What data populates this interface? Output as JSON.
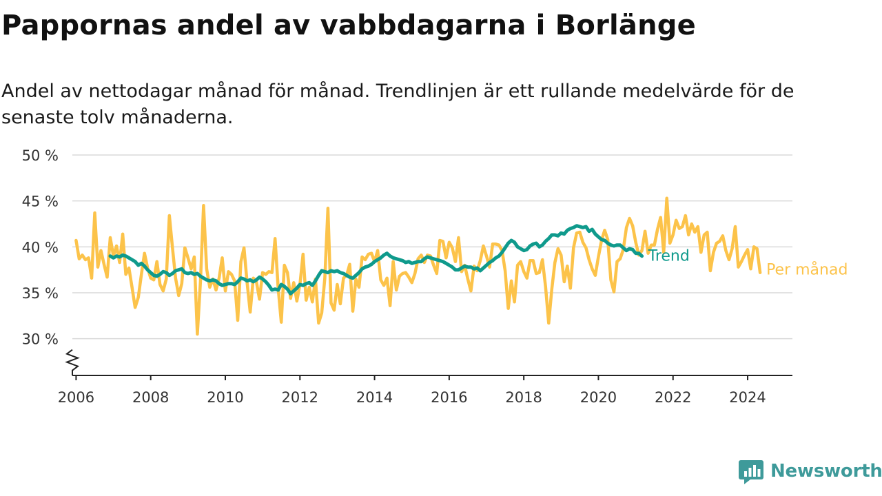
{
  "title": "Pappornas andel av vabbdagarna i Borlänge",
  "subtitle": "Andel av nettodagar månad för månad. Trendlinjen är ett rullande medelvärde för de senaste tolv månaderna.",
  "logo": {
    "text": "Newsworthy",
    "icon": "newsworthy-logo-icon"
  },
  "colors": {
    "monthly": "#fcc34a",
    "trend": "#0f9a8c",
    "grid": "#d9d9d9",
    "axis": "#222222",
    "text": "#333333",
    "logo": "#3e9a9a"
  },
  "chart_data": {
    "type": "line",
    "title": "Pappornas andel av vabbdagarna i Borlänge",
    "subtitle": "Andel av nettodagar månad för månad. Trendlinjen är ett rullande medelvärde för de senaste tolv månaderna.",
    "xlabel": "",
    "ylabel": "",
    "ylim": [
      26,
      50
    ],
    "y_axis_break": true,
    "y_ticks": [
      30,
      35,
      40,
      45,
      50
    ],
    "y_tick_labels": [
      "30 %",
      "35 %",
      "40 %",
      "45 %",
      "50 %"
    ],
    "x_ticks": [
      2006,
      2008,
      2010,
      2012,
      2014,
      2016,
      2018,
      2020,
      2022,
      2024
    ],
    "x_tick_labels": [
      "2006",
      "2008",
      "2010",
      "2012",
      "2014",
      "2016",
      "2018",
      "2020",
      "2022",
      "2024"
    ],
    "xlim": [
      2005.9,
      2025.2
    ],
    "grid": true,
    "legend": "direct labels at right end of lines",
    "x_start": "2006-01",
    "x_step": "month",
    "series": [
      {
        "name": "Trend",
        "start": "2006-12",
        "values": [
          39.0,
          38.8,
          39.0,
          38.9,
          39.1,
          39.0,
          38.8,
          38.6,
          38.4,
          38.0,
          38.2,
          37.9,
          37.5,
          37.2,
          36.9,
          36.8,
          37.0,
          37.3,
          37.2,
          36.9,
          37.1,
          37.4,
          37.5,
          37.6,
          37.2,
          37.1,
          37.2,
          37.0,
          37.1,
          36.8,
          36.6,
          36.4,
          36.3,
          36.4,
          36.3,
          36.0,
          35.8,
          35.9,
          36.0,
          36.0,
          35.9,
          36.2,
          36.6,
          36.5,
          36.3,
          36.4,
          36.2,
          36.4,
          36.7,
          36.5,
          36.2,
          35.8,
          35.3,
          35.4,
          35.3,
          35.9,
          35.7,
          35.4,
          34.9,
          35.2,
          35.5,
          35.9,
          35.8,
          36.0,
          36.1,
          35.8,
          36.3,
          36.9,
          37.4,
          37.3,
          37.2,
          37.4,
          37.3,
          37.4,
          37.2,
          37.1,
          36.9,
          36.7,
          36.6,
          36.9,
          37.2,
          37.6,
          37.8,
          37.9,
          38.1,
          38.4,
          38.6,
          38.8,
          39.1,
          39.3,
          39.0,
          38.8,
          38.7,
          38.6,
          38.5,
          38.3,
          38.4,
          38.2,
          38.3,
          38.4,
          38.4,
          38.7,
          38.9,
          38.8,
          38.7,
          38.6,
          38.5,
          38.4,
          38.2,
          38.0,
          37.8,
          37.5,
          37.5,
          37.7,
          37.9,
          37.8,
          37.8,
          37.6,
          37.7,
          37.4,
          37.7,
          38.0,
          38.3,
          38.5,
          38.8,
          39.0,
          39.4,
          39.9,
          40.4,
          40.7,
          40.5,
          40.0,
          39.8,
          39.6,
          39.7,
          40.1,
          40.3,
          40.4,
          40.0,
          40.2,
          40.6,
          40.9,
          41.3,
          41.3,
          41.2,
          41.5,
          41.4,
          41.8,
          42.0,
          42.1,
          42.3,
          42.2,
          42.1,
          42.2,
          41.7,
          41.9,
          41.4,
          41.1,
          40.8,
          40.7,
          40.4,
          40.2,
          40.1,
          40.2,
          40.2,
          39.9,
          39.6,
          39.8,
          39.7,
          39.3,
          39.3,
          39.0
        ]
      },
      {
        "name": "Per månad",
        "start": "2006-01",
        "values": [
          40.7,
          38.7,
          39.1,
          38.6,
          38.8,
          36.6,
          43.7,
          37.8,
          39.6,
          38.1,
          36.7,
          41.0,
          39.0,
          40.1,
          38.3,
          41.4,
          37.0,
          37.7,
          35.6,
          33.4,
          34.5,
          37.0,
          39.3,
          37.7,
          36.6,
          36.4,
          38.4,
          35.9,
          35.2,
          36.5,
          43.4,
          39.9,
          36.6,
          34.7,
          36.0,
          39.9,
          38.8,
          37.6,
          38.9,
          30.5,
          36.2,
          44.5,
          37.6,
          35.6,
          36.5,
          35.3,
          36.6,
          38.8,
          35.2,
          37.3,
          37.0,
          36.3,
          32.0,
          38.4,
          39.9,
          36.1,
          32.9,
          36.6,
          36.2,
          34.3,
          37.2,
          37.0,
          37.3,
          37.2,
          40.9,
          35.5,
          31.8,
          38.0,
          37.2,
          34.4,
          36.1,
          34.1,
          35.9,
          39.2,
          34.2,
          35.6,
          34.0,
          36.5,
          31.7,
          32.8,
          36.6,
          44.2,
          33.9,
          33.1,
          35.9,
          33.8,
          36.6,
          36.9,
          38.1,
          33.0,
          36.5,
          35.6,
          38.9,
          38.6,
          39.2,
          39.3,
          38.4,
          39.6,
          36.4,
          35.8,
          36.6,
          33.6,
          38.4,
          35.3,
          36.8,
          37.1,
          37.2,
          36.7,
          36.1,
          37.1,
          38.7,
          39.1,
          38.3,
          39.1,
          39.0,
          38.0,
          37.1,
          40.7,
          40.6,
          38.8,
          40.5,
          39.9,
          38.4,
          41.0,
          37.3,
          38.0,
          36.5,
          35.2,
          37.9,
          37.4,
          38.5,
          40.1,
          39.0,
          37.8,
          40.3,
          40.3,
          40.2,
          39.6,
          37.4,
          33.3,
          36.3,
          34.0,
          38.0,
          38.4,
          37.3,
          36.6,
          38.5,
          38.5,
          37.1,
          37.2,
          38.6,
          35.7,
          31.7,
          35.4,
          38.3,
          39.8,
          39.1,
          36.2,
          37.9,
          35.5,
          39.9,
          41.5,
          41.6,
          40.5,
          39.9,
          38.6,
          37.6,
          36.9,
          38.9,
          40.7,
          41.8,
          40.8,
          36.4,
          35.1,
          38.4,
          38.7,
          39.7,
          42.1,
          43.1,
          42.3,
          40.5,
          39.1,
          39.6,
          41.7,
          39.3,
          40.2,
          40.2,
          41.9,
          43.2,
          39.4,
          45.3,
          40.4,
          41.3,
          42.9,
          42.0,
          42.2,
          43.4,
          41.3,
          42.5,
          41.6,
          42.2,
          39.4,
          41.3,
          41.6,
          37.4,
          39.4,
          40.4,
          40.6,
          41.2,
          39.6,
          38.6,
          39.8,
          42.2,
          37.8,
          38.4,
          39.1,
          39.7,
          37.6,
          40.0,
          39.8,
          37.2
        ]
      }
    ]
  }
}
